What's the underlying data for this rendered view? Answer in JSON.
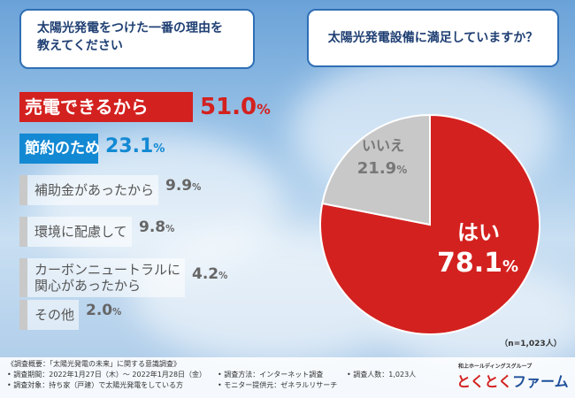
{
  "questions": {
    "left_line1": "太陽光発電をつけた一番の理由を",
    "left_line2": "教えてください",
    "right": "太陽光発電設備に満足していますか？"
  },
  "chart_data": [
    {
      "type": "bar",
      "categories": [
        "売電できるから",
        "節約のため",
        "補助金があったから",
        "環境に配慮して",
        "カーボンニュートラルに関心があったから",
        "その他"
      ],
      "values": [
        51.0,
        23.1,
        9.9,
        9.8,
        4.2,
        2.0
      ],
      "value_labels": [
        "51.0",
        "23.1",
        "9.9",
        "9.8",
        "4.2",
        "2.0"
      ],
      "unit": "%",
      "category_lines": [
        [
          "売電できるから"
        ],
        [
          "節約のため"
        ],
        [
          "補助金があったから"
        ],
        [
          "環境に配慮して"
        ],
        [
          "カーボンニュートラルに",
          "関心があったから"
        ],
        [
          "その他"
        ]
      ],
      "colors": [
        "#d3211f",
        "#1389d3",
        "#c9c9c9",
        "#c9c9c9",
        "#c9c9c9",
        "#c9c9c9"
      ]
    },
    {
      "type": "pie",
      "categories": [
        "はい",
        "いいえ"
      ],
      "values": [
        78.1,
        21.9
      ],
      "value_labels": [
        "78.1",
        "21.9"
      ],
      "unit": "%",
      "colors": [
        "#d3211f",
        "#c8c8c8"
      ],
      "note": "（n=1,023人）"
    }
  ],
  "footer": {
    "overview": "《調査概要：「太陽光発電の未来」に関する意識調査》",
    "period": "• 調査期間：2022年1月27日（木）～ 2022年1月28日（金）",
    "method": "• 調査方法：インターネット調査",
    "count": "• 調査人数：1,023人",
    "target": "• 調査対象：持ち家（戸建）で太陽光発電をしている方",
    "monitor": "• モニター提供元：ゼネラルリサーチ",
    "company_group": "和上ホールディングスグループ",
    "brand_part1": "とくとく",
    "brand_part2": "ファーム"
  }
}
